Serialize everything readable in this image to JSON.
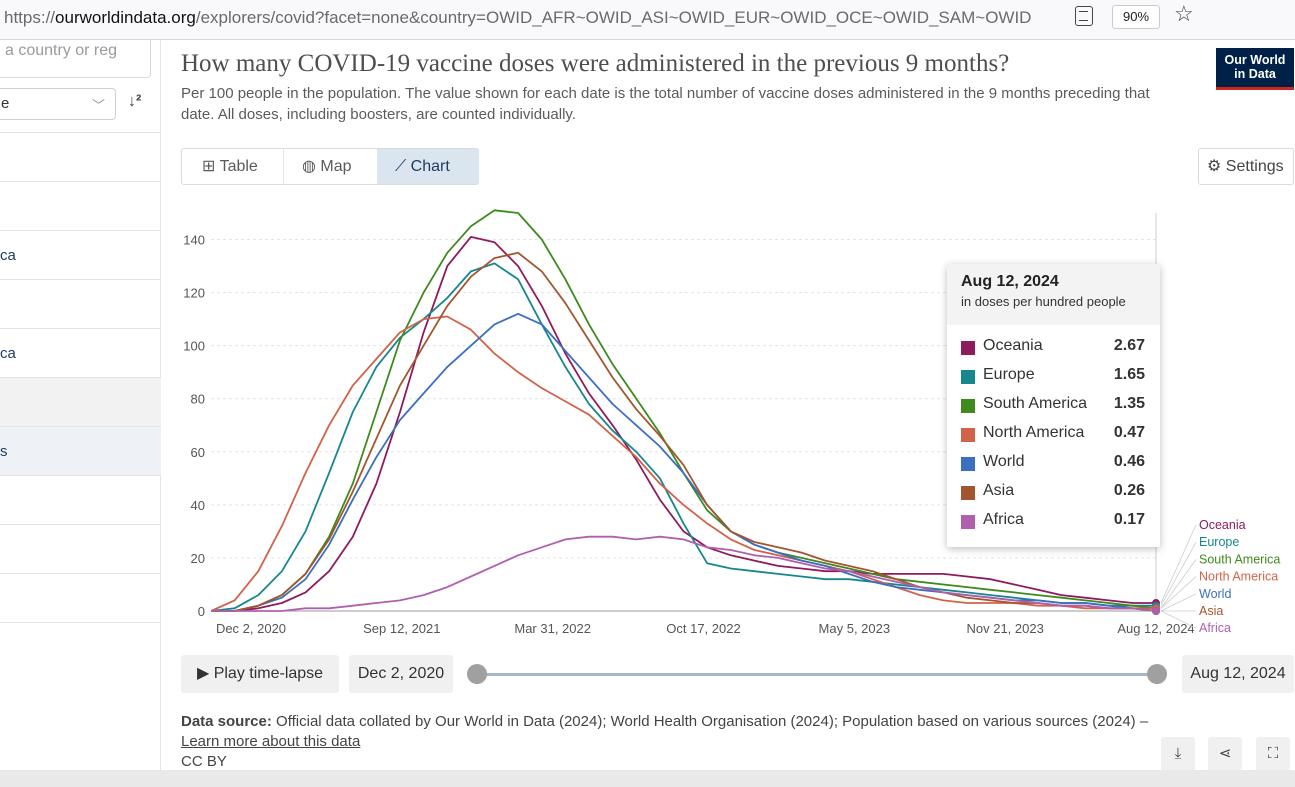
{
  "browser": {
    "url_prefix": "https://",
    "url_domain": "ourworldindata.org",
    "url_path": "/explorers/covid?facet=none&country=OWID_AFR~OWID_ASI~OWID_EUR~OWID_OCE~OWID_SAM~OWID",
    "zoom": "90%",
    "reader_icon": "reader-view-icon",
    "star_icon": "bookmark-star-icon"
  },
  "sidebar": {
    "search_placeholder": "a country or reg",
    "sort_value": "e",
    "items": [
      "",
      "",
      "ca",
      "",
      "ca",
      "",
      "s",
      "",
      "",
      "",
      ""
    ]
  },
  "header": {
    "title": "How many COVID-19 vaccine doses were administered in the previous 9 months?",
    "subtitle": "Per 100 people in the population. The value shown for each date is the total number of vaccine doses administered in the 9 months preceding that date. All doses, including boosters, are counted individually.",
    "logo_line1": "Our World",
    "logo_line2": "in Data"
  },
  "tabs": [
    {
      "label": "Table",
      "icon": "table-icon"
    },
    {
      "label": "Map",
      "icon": "globe-icon"
    },
    {
      "label": "Chart",
      "icon": "line-chart-icon"
    }
  ],
  "settings_label": "Settings",
  "chart_data": {
    "type": "line",
    "x_ticks": [
      "Dec 2, 2020",
      "Sep 12, 2021",
      "Mar 31, 2022",
      "Oct 17, 2022",
      "May 5, 2023",
      "Nov 21, 2023",
      "Aug 12, 2024"
    ],
    "y_ticks": [
      0,
      20,
      40,
      60,
      80,
      100,
      120,
      140
    ],
    "ylim": [
      0,
      150
    ],
    "grid": "horizontal",
    "series": [
      {
        "name": "Oceania",
        "color": "#970046",
        "values": [
          0,
          0,
          1,
          3,
          7,
          15,
          28,
          48,
          75,
          105,
          130,
          141,
          139,
          130,
          115,
          97,
          82,
          70,
          57,
          42,
          30,
          24,
          21,
          19,
          17,
          16,
          15,
          15,
          14,
          14,
          14,
          14,
          13,
          12,
          10,
          8,
          6,
          5,
          4,
          3,
          3
        ]
      },
      {
        "name": "Europe",
        "color": "#00847e",
        "values": [
          0,
          1,
          6,
          15,
          30,
          52,
          75,
          92,
          103,
          110,
          118,
          128,
          131,
          125,
          108,
          92,
          78,
          68,
          60,
          50,
          33,
          18,
          16,
          15,
          14,
          13,
          12,
          12,
          11,
          10,
          9,
          8,
          7,
          6,
          5,
          4,
          3,
          3,
          2,
          2,
          2
        ]
      },
      {
        "name": "South America",
        "color": "#38aaba",
        "values": [
          0,
          0,
          2,
          6,
          14,
          28,
          48,
          75,
          102,
          120,
          135,
          145,
          151,
          150,
          140,
          125,
          108,
          93,
          80,
          67,
          52,
          38,
          30,
          25,
          22,
          20,
          18,
          16,
          14,
          12,
          11,
          10,
          9,
          8,
          7,
          6,
          5,
          4,
          3,
          2,
          1
        ]
      },
      {
        "name": "North America",
        "color": "#d73c50",
        "values": [
          0,
          4,
          15,
          32,
          52,
          70,
          85,
          95,
          105,
          110,
          111,
          106,
          97,
          90,
          84,
          79,
          74,
          66,
          58,
          48,
          40,
          33,
          27,
          23,
          21,
          19,
          17,
          15,
          12,
          9,
          6,
          4,
          3,
          3,
          3,
          2,
          2,
          1,
          1,
          1,
          1
        ]
      },
      {
        "name": "World",
        "color": "#286bbb",
        "values": [
          0,
          0,
          2,
          5,
          12,
          25,
          42,
          58,
          72,
          82,
          92,
          100,
          108,
          112,
          108,
          98,
          88,
          78,
          70,
          62,
          52,
          40,
          30,
          25,
          22,
          19,
          17,
          14,
          11,
          9,
          8,
          7,
          6,
          5,
          4,
          4,
          3,
          3,
          2,
          1,
          0
        ]
      },
      {
        "name": "Asia",
        "color": "#883039",
        "values": [
          0,
          0,
          2,
          6,
          14,
          27,
          45,
          65,
          85,
          100,
          115,
          126,
          133,
          135,
          128,
          116,
          102,
          88,
          76,
          66,
          55,
          40,
          30,
          26,
          24,
          22,
          19,
          17,
          15,
          12,
          9,
          7,
          5,
          4,
          3,
          3,
          2,
          2,
          1,
          1,
          0
        ]
      },
      {
        "name": "Africa",
        "color": "#a2559c",
        "values": [
          0,
          0,
          0,
          0,
          1,
          1,
          2,
          3,
          4,
          6,
          9,
          13,
          17,
          21,
          24,
          27,
          28,
          28,
          27,
          28,
          27,
          24,
          23,
          21,
          20,
          18,
          16,
          15,
          13,
          11,
          9,
          7,
          6,
          5,
          4,
          3,
          2,
          2,
          1,
          1,
          0
        ]
      }
    ],
    "series_colors_rendered": [
      "#8f1a5c",
      "#17878f",
      "#3e8a1e",
      "#d0634a",
      "#3b6fc4",
      "#a3562e",
      "#b05fae"
    ]
  },
  "tooltip": {
    "date": "Aug 12, 2024",
    "unit": "in doses per hundred people",
    "rows": [
      {
        "name": "Oceania",
        "value": "2.67"
      },
      {
        "name": "Europe",
        "value": "1.65"
      },
      {
        "name": "South America",
        "value": "1.35"
      },
      {
        "name": "North America",
        "value": "0.47"
      },
      {
        "name": "World",
        "value": "0.46"
      },
      {
        "name": "Asia",
        "value": "0.26"
      },
      {
        "name": "Africa",
        "value": "0.17"
      }
    ]
  },
  "timeline": {
    "play_label": "Play time-lapse",
    "start_label": "Dec 2, 2020",
    "end_label": "Aug 12, 2024"
  },
  "footer": {
    "source_label": "Data source:",
    "source_text": " Official data collated by Our World in Data (2024); World Health Organisation (2024); Population based on various sources (2024) – ",
    "learn_more": "Learn more about this data",
    "license": "CC BY",
    "download_icon": "download-icon",
    "share_icon": "share-icon",
    "fullscreen_icon": "fullscreen-icon"
  }
}
